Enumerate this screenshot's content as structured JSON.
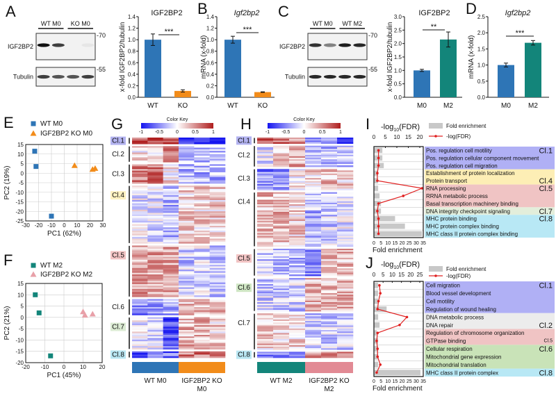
{
  "panel_letters": [
    "A",
    "B",
    "C",
    "D",
    "E",
    "F",
    "G",
    "H",
    "I",
    "J"
  ],
  "blots": [
    {
      "lane_groups": [
        "WT M0",
        "KO M0"
      ],
      "rows": [
        {
          "label": "IGF2BP2",
          "marker": "-70",
          "intensities": [
            1.0,
            0.8,
            0.0,
            0.05
          ]
        },
        {
          "label": "Tubulin",
          "marker": "-55",
          "intensities": [
            0.8,
            0.7,
            0.7,
            0.8
          ]
        }
      ]
    },
    {
      "lane_groups": [
        "WT M0",
        "WT M2"
      ],
      "rows": [
        {
          "label": "IGF2BP2",
          "marker": "-70",
          "intensities": [
            0.85,
            0.5,
            0.95,
            0.9
          ]
        },
        {
          "label": "Tubulin",
          "marker": "-55",
          "intensities": [
            0.9,
            0.9,
            0.9,
            0.9
          ]
        }
      ]
    }
  ],
  "chart_data": [
    {
      "type": "bar",
      "title": "IGF2BP2",
      "title_italic": false,
      "ylabel": "x-fold IGF2BP2/tubulin",
      "ylim": [
        0,
        1.4
      ],
      "yticks": [
        "0.0",
        "0.2",
        "0.4",
        "0.6",
        "0.8",
        "1.0",
        "1.2",
        "1.4"
      ],
      "categories": [
        "WT",
        "KO"
      ],
      "values": [
        1.0,
        0.11
      ],
      "errors": [
        0.1,
        0.02
      ],
      "colors": [
        "#2e75b6",
        "#f28c1a"
      ],
      "significance": "***"
    },
    {
      "type": "bar",
      "title": "Igf2bp2",
      "title_italic": true,
      "ylabel": "mRNA (x-fold)",
      "ylim": [
        0,
        1.4
      ],
      "yticks": [
        "0.0",
        "0.2",
        "0.4",
        "0.6",
        "0.8",
        "1.0",
        "1.2",
        "1.4"
      ],
      "categories": [
        "WT",
        "KO"
      ],
      "values": [
        1.0,
        0.09
      ],
      "errors": [
        0.06,
        0.005
      ],
      "colors": [
        "#2e75b6",
        "#f28c1a"
      ],
      "significance": "***"
    },
    {
      "type": "bar",
      "title": "IGF2BP2",
      "title_italic": false,
      "ylabel": "x-fold IGF2BP2/tubulin",
      "ylim": [
        0,
        3.0
      ],
      "yticks": [
        "0.0",
        "0.5",
        "1.0",
        "1.5",
        "2.0",
        "2.5",
        "3.0"
      ],
      "categories": [
        "M0",
        "M2"
      ],
      "values": [
        1.0,
        2.15
      ],
      "errors": [
        0.04,
        0.28
      ],
      "colors": [
        "#2e75b6",
        "#13857a"
      ],
      "significance": "**"
    },
    {
      "type": "bar",
      "title": "Igf2bp2",
      "title_italic": true,
      "ylabel": "mRNA (x-fold)",
      "ylim": [
        0,
        2.5
      ],
      "yticks": [
        "0.0",
        "0.5",
        "1.0",
        "1.5",
        "2.0",
        "2.5"
      ],
      "categories": [
        "M0",
        "M2"
      ],
      "values": [
        1.0,
        1.69
      ],
      "errors": [
        0.06,
        0.07
      ],
      "colors": [
        "#2e75b6",
        "#13857a"
      ],
      "significance": "***"
    },
    {
      "type": "scatter",
      "xlabel": "PC1 (62%)",
      "ylabel": "PC2 (19%)",
      "xlim": [
        -30,
        30
      ],
      "ylim": [
        -25,
        15
      ],
      "grid": true,
      "xticks": [
        "-30",
        "-20",
        "-10",
        "0",
        "10",
        "20",
        "30"
      ],
      "yticks": [
        "-25",
        "-20",
        "-15",
        "-10",
        "-5",
        "0",
        "5",
        "10",
        "15"
      ],
      "series": [
        {
          "name": "WT M0",
          "marker": "square",
          "color": "#2e75b6",
          "points": [
            [
              -23,
              11.5
            ],
            [
              -22,
              3.5
            ],
            [
              -10,
              -22.5
            ]
          ]
        },
        {
          "name": "IGF2BP2 KO M0",
          "marker": "triangle",
          "color": "#f28c1a",
          "points": [
            [
              8,
              4
            ],
            [
              22,
              2
            ],
            [
              24,
              2.5
            ]
          ]
        }
      ]
    },
    {
      "type": "scatter",
      "xlabel": "PC1 (45%)",
      "ylabel": "PC2 (21%)",
      "xlim": [
        -20,
        20
      ],
      "ylim": [
        -20,
        15
      ],
      "grid": true,
      "xticks": [
        "-20",
        "-10",
        "0",
        "10",
        "20"
      ],
      "yticks": [
        "-20",
        "-15",
        "-10",
        "-5",
        "0",
        "5",
        "10",
        "15"
      ],
      "series": [
        {
          "name": "WT M2",
          "marker": "square",
          "color": "#13857a",
          "points": [
            [
              -15,
              10
            ],
            [
              -13,
              2
            ],
            [
              -7,
              -17
            ]
          ]
        },
        {
          "name": "IGF2BP2 KO M2",
          "marker": "triangle",
          "color": "#e8a0a8",
          "points": [
            [
              10,
              2.5
            ],
            [
              11,
              1
            ],
            [
              15,
              1.5
            ]
          ]
        }
      ]
    },
    {
      "type": "heatmap",
      "color_key_title": "Color Key",
      "color_key_ticks": [
        "-1",
        "-0.5",
        "0",
        "0.5",
        "1"
      ],
      "range": [
        -1,
        1
      ],
      "groups": [
        {
          "label": "WT M0",
          "label2": "",
          "color": "#2e75b6"
        },
        {
          "label": "IGF2BP2 KO",
          "label2": "M0",
          "color": "#f28c1a"
        }
      ],
      "clusters": [
        {
          "label": "Cl.1",
          "color": "#b3b3f0",
          "rows": 4,
          "column_means": [
            0.8,
            0.8,
            0.7,
            -0.9,
            -0.9,
            -1.0
          ]
        },
        {
          "label": "Cl.2",
          "color": "",
          "rows": 10,
          "column_means": [
            0.1,
            0.2,
            0.5,
            -0.3,
            -0.3,
            -0.3
          ]
        },
        {
          "label": "Cl.3",
          "color": "",
          "rows": 12,
          "column_means": [
            0.6,
            0.6,
            0.1,
            -0.3,
            -0.3,
            -0.3
          ]
        },
        {
          "label": "Cl.4",
          "color": "#fdf1c0",
          "rows": 36,
          "column_means": [
            -0.1,
            -0.1,
            -0.3,
            0.2,
            0.2,
            0.2
          ]
        },
        {
          "label": "Cl.5",
          "color": "#f2c4c4",
          "rows": 32,
          "column_means": [
            0.4,
            0.4,
            0.4,
            -0.2,
            -0.15,
            -0.2
          ]
        },
        {
          "label": "Cl.6",
          "color": "",
          "rows": 10,
          "column_means": [
            -0.5,
            -0.5,
            -0.3,
            0.3,
            0.3,
            0.3
          ]
        },
        {
          "label": "Cl.7",
          "color": "#dbebd3",
          "rows": 20,
          "column_means": [
            -0.1,
            -0.1,
            -0.7,
            0.3,
            0.3,
            0.2
          ]
        },
        {
          "label": "Cl.8",
          "color": "#b9e6f2",
          "rows": 4,
          "column_means": [
            -0.8,
            -0.6,
            -0.6,
            0.6,
            0.6,
            0.6
          ]
        }
      ]
    },
    {
      "type": "heatmap",
      "color_key_title": "Color Key",
      "color_key_ticks": [
        "-1",
        "-0.5",
        "0",
        "0.5",
        "1"
      ],
      "range": [
        -1,
        1
      ],
      "groups": [
        {
          "label": "WT M2",
          "label2": "",
          "color": "#13857a"
        },
        {
          "label": "IGF2BP2 KO",
          "label2": "M2",
          "color": "#e28a94"
        }
      ],
      "clusters": [
        {
          "label": "Cl.1",
          "color": "#b3b3f0",
          "rows": 4,
          "column_means": [
            0.8,
            0.6,
            0.5,
            -0.3,
            -0.3,
            -0.9
          ]
        },
        {
          "label": "Cl.2",
          "color": "",
          "rows": 14,
          "column_means": [
            -0.1,
            0.3,
            0.4,
            -0.3,
            -0.3,
            -0.2
          ]
        },
        {
          "label": "Cl.3",
          "color": "",
          "rows": 14,
          "column_means": [
            -0.5,
            -0.4,
            0.1,
            0.2,
            0.3,
            0.2
          ]
        },
        {
          "label": "Cl.4",
          "color": "",
          "rows": 36,
          "column_means": [
            0.3,
            0.3,
            0.2,
            -0.3,
            -0.2,
            -0.1
          ]
        },
        {
          "label": "Cl.5",
          "color": "#f2c4c4",
          "rows": 18,
          "column_means": [
            -0.2,
            -0.3,
            -0.3,
            -0.6,
            0.3,
            0.3
          ]
        },
        {
          "label": "Cl.6",
          "color": "#cfe6c4",
          "rows": 22,
          "column_means": [
            -0.2,
            -0.2,
            -0.2,
            0.3,
            0.3,
            0.3
          ]
        },
        {
          "label": "Cl.7",
          "color": "",
          "rows": 24,
          "column_means": [
            0.2,
            0.2,
            0.2,
            -0.2,
            -0.2,
            -0.2
          ]
        },
        {
          "label": "Cl.8",
          "color": "#b9e6f2",
          "rows": 4,
          "column_means": [
            -0.5,
            -0.5,
            -0.5,
            0.5,
            0.5,
            0.5
          ]
        }
      ]
    },
    {
      "type": "go_enrichment",
      "title_prefix": "-log",
      "title_sub": "10",
      "title_suffix": "(FDR)",
      "top_axis": {
        "max": 20,
        "ticks": [
          "0",
          "5",
          "10",
          "15",
          "20"
        ]
      },
      "bottom_axis": {
        "label": "Fold enrichment",
        "max": 35,
        "ticks": [
          "0",
          "5",
          "10",
          "15",
          "20",
          "25",
          "30",
          "35"
        ]
      },
      "legend": {
        "bar": "Fold enrichment",
        "line": "-log(FDR)"
      },
      "line_color": "#e02020",
      "bar_color": "#c8c8c8",
      "clusters": [
        {
          "label": "Cl.1",
          "color": "#b0b0f5",
          "terms": [
            "Pos. regulation cell motility",
            "Pos. regulation cellular component movement",
            "Pos. regulation cell migration"
          ],
          "fold": [
            6,
            6,
            7
          ],
          "neglogfdr": [
            2,
            2,
            2
          ]
        },
        {
          "label": "Cl.4",
          "color": "#fdeeb5",
          "terms": [
            "Establishment of protein localization",
            "Protein transport"
          ],
          "fold": [
            3,
            3
          ],
          "neglogfdr": [
            1.5,
            1.5
          ]
        },
        {
          "label": "Cl.5",
          "color": "#f0c4c4",
          "terms": [
            "RNA processing",
            "RRNA metabolic process",
            "Basal transcription machinery binding"
          ],
          "fold": [
            3,
            4,
            5
          ],
          "neglogfdr": [
            21,
            12.8,
            2
          ]
        },
        {
          "label": "Cl.7",
          "color": "#e3eedb",
          "terms": [
            "DNA integrity checkpoint signaling"
          ],
          "fold": [
            5
          ],
          "neglogfdr": [
            1.5
          ]
        },
        {
          "label": "Cl.8",
          "color": "#b8e8f5",
          "terms": [
            "MHC protein binding",
            "MHC protein complex binding",
            "MHC class II protein complex binding"
          ],
          "fold": [
            15,
            22,
            34
          ],
          "neglogfdr": [
            2,
            2,
            2
          ]
        }
      ]
    },
    {
      "type": "go_enrichment",
      "title_prefix": "-log",
      "title_sub": "10",
      "title_suffix": "(FDR)",
      "top_axis": {
        "max": 25,
        "ticks": [
          "0",
          "5",
          "10",
          "15",
          "20",
          "25"
        ]
      },
      "bottom_axis": {
        "label": "Fold enrichment",
        "max": 35,
        "ticks": [
          "0",
          "5",
          "10",
          "15",
          "20",
          "25",
          "30",
          "35"
        ]
      },
      "legend": {
        "bar": "Fold enrichment",
        "line": "-log(FDR)"
      },
      "line_color": "#e02020",
      "bar_color": "#c8c8c8",
      "clusters": [
        {
          "label": "Cl.1",
          "color": "#b0b0f5",
          "terms": [
            "Cell migration",
            "Blood vessel development",
            "Cell motility",
            "Regulation of wound healing"
          ],
          "fold": [
            3,
            3,
            3,
            9
          ],
          "neglogfdr": [
            3,
            3.5,
            2.5,
            2
          ]
        },
        {
          "label": "Cl.2",
          "color": "#ececec",
          "terms": [
            "DNA metabolic process",
            "DNA repair"
          ],
          "fold": [
            3,
            4
          ],
          "neglogfdr": [
            18,
            14
          ]
        },
        {
          "label": "Cl.5",
          "color": "#f0c4c4",
          "terms": [
            "Regulation of chromosome organization",
            "GTPase binding"
          ],
          "fold": [
            2,
            3
          ],
          "neglogfdr": [
            2,
            1.5
          ]
        },
        {
          "label": "Cl.6",
          "color": "#c9e3b8",
          "terms": [
            "Cellular respiration",
            "Mitochondrial gene expression",
            "Mitochondrial translation"
          ],
          "fold": [
            3,
            3,
            3
          ],
          "neglogfdr": [
            2,
            2,
            3.5
          ]
        },
        {
          "label": "Cl.8",
          "color": "#b8e8f5",
          "terms": [
            "MHC class II protein complex"
          ],
          "fold": [
            33
          ],
          "neglogfdr": [
            1.5
          ]
        }
      ]
    }
  ]
}
